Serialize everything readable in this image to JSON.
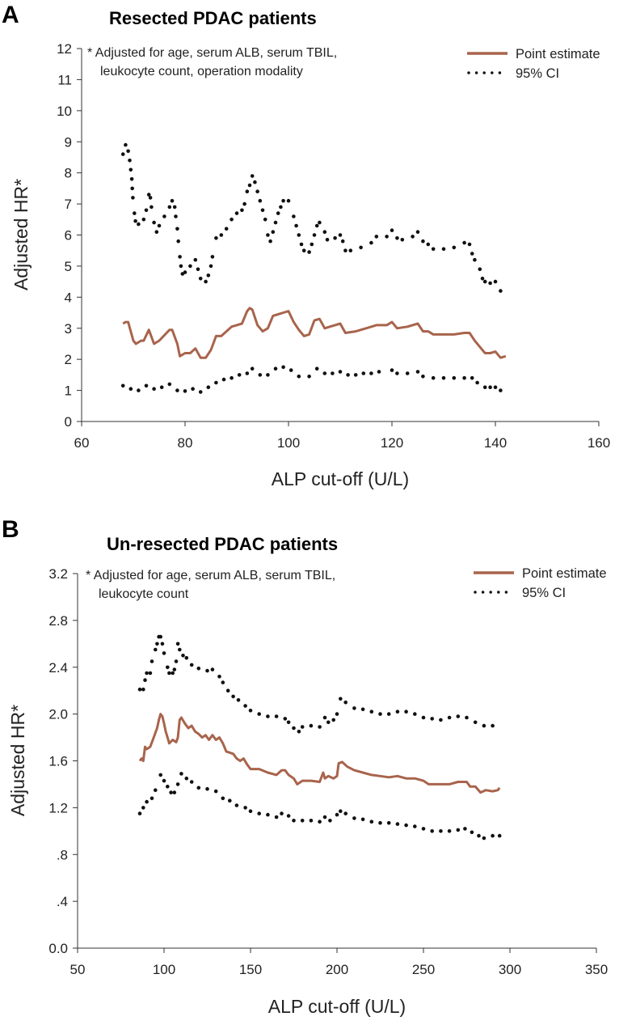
{
  "chart_data": [
    {
      "type": "line",
      "panel_label": "A",
      "title": "Resected PDAC patients",
      "xlabel": "ALP cut-off (U/L)",
      "ylabel": "Adjusted HR*",
      "xlim": [
        60,
        160
      ],
      "ylim": [
        0,
        12
      ],
      "xticks": [
        "60",
        "80",
        "100",
        "120",
        "140",
        "160"
      ],
      "yticks": [
        "0",
        "1",
        "2",
        "3",
        "4",
        "5",
        "6",
        "7",
        "8",
        "9",
        "10",
        "11",
        "12"
      ],
      "note": [
        "* Adjusted for age, serum ALB, serum TBIL,",
        "leukocyte count, operation modality"
      ],
      "legend": {
        "placement": "top-right",
        "point_estimate": "Point estimate",
        "ci": "95% CI"
      },
      "colors": {
        "point_estimate": "#a8644c",
        "ci": "#111111"
      },
      "series": [
        {
          "name": "Point estimate",
          "style": "solid",
          "x": [
            68,
            68.5,
            69,
            70,
            70.5,
            71.5,
            72,
            73,
            74,
            75,
            77,
            77.5,
            78.5,
            79,
            80,
            81,
            82,
            83,
            84,
            85,
            86,
            87,
            88,
            89,
            90,
            91,
            92,
            92.5,
            93,
            94,
            95,
            96,
            97,
            98,
            99,
            100,
            101,
            102,
            103,
            104,
            105,
            106,
            107,
            108,
            109,
            110,
            111,
            113,
            115,
            117,
            119,
            120,
            121,
            123,
            125,
            126,
            127,
            128,
            130,
            132,
            134,
            135,
            136,
            137,
            138,
            139,
            140,
            141,
            142
          ],
          "y": [
            3.15,
            3.2,
            3.2,
            2.6,
            2.5,
            2.6,
            2.6,
            2.95,
            2.5,
            2.6,
            2.95,
            2.95,
            2.5,
            2.1,
            2.2,
            2.2,
            2.35,
            2.05,
            2.05,
            2.3,
            2.75,
            2.75,
            2.9,
            3.05,
            3.1,
            3.15,
            3.55,
            3.65,
            3.6,
            3.1,
            2.9,
            3.0,
            3.4,
            3.45,
            3.5,
            3.55,
            3.2,
            2.95,
            2.75,
            2.8,
            3.25,
            3.3,
            3.0,
            3.05,
            3.1,
            3.15,
            2.85,
            2.9,
            3.0,
            3.1,
            3.1,
            3.2,
            3.0,
            3.05,
            3.15,
            2.9,
            2.9,
            2.8,
            2.8,
            2.8,
            2.85,
            2.85,
            2.6,
            2.4,
            2.2,
            2.2,
            2.25,
            2.05,
            2.1
          ]
        },
        {
          "name": "95% CI upper",
          "style": "dotted",
          "x": [
            68,
            68.5,
            69,
            69.3,
            69.5,
            69.7,
            69.8,
            69.9,
            70.2,
            70.4,
            71,
            72,
            72.5,
            73,
            73.3,
            73.5,
            74,
            74.5,
            75,
            76,
            77,
            77.5,
            78,
            78.2,
            78.5,
            78.7,
            79,
            79.2,
            79.5,
            80,
            81,
            82,
            82.5,
            83,
            84,
            84.5,
            85,
            85.3,
            86,
            87,
            88,
            89,
            90,
            91,
            91.5,
            92,
            92.5,
            93,
            93.5,
            94,
            94.5,
            95,
            95.5,
            96,
            96.5,
            97,
            97.5,
            98,
            98.5,
            99,
            100,
            101,
            101.5,
            102,
            102.5,
            103,
            104,
            104.5,
            105,
            105.5,
            106,
            107,
            107.5,
            109,
            110,
            110.5,
            111,
            112,
            114,
            116,
            117,
            119,
            120,
            121,
            122,
            124,
            125,
            126,
            127,
            128,
            130,
            132,
            134,
            135,
            135.5,
            136,
            137,
            137.5,
            138,
            139,
            140,
            141
          ],
          "y": [
            8.6,
            8.9,
            8.7,
            8.4,
            8.1,
            7.8,
            7.5,
            7.2,
            6.7,
            6.45,
            6.35,
            6.5,
            6.8,
            7.3,
            7.2,
            6.9,
            6.4,
            6.1,
            6.3,
            6.6,
            6.9,
            7.1,
            6.9,
            6.6,
            6.2,
            5.8,
            5.3,
            5.0,
            4.75,
            4.8,
            5.0,
            5.2,
            4.9,
            4.6,
            4.5,
            4.7,
            5.0,
            5.3,
            5.9,
            6.0,
            6.2,
            6.5,
            6.7,
            6.8,
            7.0,
            7.4,
            7.6,
            7.9,
            7.7,
            7.4,
            7.1,
            6.8,
            6.5,
            6.0,
            5.8,
            6.1,
            6.4,
            6.7,
            6.9,
            7.1,
            7.1,
            6.6,
            6.3,
            6.0,
            5.7,
            5.5,
            5.45,
            5.7,
            6.0,
            6.3,
            6.4,
            6.1,
            5.85,
            5.9,
            6.0,
            5.8,
            5.5,
            5.5,
            5.6,
            5.75,
            5.95,
            5.95,
            6.15,
            5.9,
            5.85,
            5.95,
            6.1,
            5.8,
            5.7,
            5.55,
            5.55,
            5.6,
            5.75,
            5.7,
            5.4,
            5.2,
            4.9,
            4.6,
            4.5,
            4.45,
            4.5,
            4.2
          ]
        },
        {
          "name": "95% CI lower",
          "style": "dotted",
          "x": [
            68,
            69.5,
            71,
            72.5,
            74,
            75.5,
            77,
            78.5,
            80,
            81.5,
            83,
            84.5,
            86,
            87.5,
            89,
            90.5,
            92,
            93,
            94.5,
            96,
            97.5,
            99,
            100.5,
            102,
            104,
            105.5,
            107,
            108.5,
            110,
            111.5,
            113,
            114.5,
            116,
            117.5,
            120,
            121,
            123,
            125,
            126,
            128,
            130,
            132,
            134,
            135.5,
            136.5,
            138,
            139,
            140,
            141
          ],
          "y": [
            1.15,
            1.05,
            1.0,
            1.15,
            1.05,
            1.1,
            1.2,
            1.0,
            0.98,
            1.05,
            0.95,
            1.1,
            1.25,
            1.35,
            1.4,
            1.5,
            1.55,
            1.7,
            1.5,
            1.5,
            1.7,
            1.75,
            1.65,
            1.45,
            1.45,
            1.7,
            1.55,
            1.55,
            1.6,
            1.5,
            1.5,
            1.55,
            1.55,
            1.6,
            1.65,
            1.55,
            1.55,
            1.6,
            1.45,
            1.4,
            1.4,
            1.4,
            1.4,
            1.4,
            1.25,
            1.1,
            1.1,
            1.1,
            1.0
          ]
        }
      ]
    },
    {
      "type": "line",
      "panel_label": "B",
      "title": "Un-resected PDAC patients",
      "xlabel": "ALP cut-off (U/L)",
      "ylabel": "Adjusted HR*",
      "xlim": [
        50,
        350
      ],
      "ylim": [
        0,
        3.2
      ],
      "xticks": [
        "50",
        "100",
        "150",
        "200",
        "250",
        "300",
        "350"
      ],
      "yticks": [
        "0.0",
        ".4",
        ".8",
        "1.2",
        "1.6",
        "2.0",
        "2.4",
        "2.8",
        "3.2"
      ],
      "note": [
        "* Adjusted for age, serum ALB, serum TBIL,",
        "leukocyte count"
      ],
      "legend": {
        "placement": "top-right",
        "point_estimate": "Point estimate",
        "ci": "95% CI"
      },
      "colors": {
        "point_estimate": "#a8644c",
        "ci": "#111111"
      },
      "series": [
        {
          "name": "Point estimate",
          "style": "solid",
          "x": [
            86,
            87,
            88,
            89,
            90,
            92,
            94,
            96,
            97,
            98,
            99,
            100,
            101,
            102,
            103,
            105,
            107,
            108,
            109,
            110,
            112,
            114,
            116,
            118,
            120,
            122,
            124,
            126,
            128,
            130,
            132,
            134,
            136,
            140,
            142,
            144,
            146,
            148,
            150,
            155,
            160,
            165,
            168,
            170,
            172,
            175,
            177,
            180,
            185,
            190,
            192,
            193,
            195,
            198,
            200,
            201,
            203,
            206,
            210,
            215,
            220,
            225,
            230,
            235,
            240,
            245,
            250,
            253,
            258,
            265,
            270,
            275,
            277,
            280,
            283,
            286,
            290,
            293,
            294
          ],
          "y": [
            1.6,
            1.62,
            1.6,
            1.72,
            1.7,
            1.72,
            1.8,
            1.88,
            1.95,
            2.0,
            1.98,
            1.92,
            1.85,
            1.8,
            1.75,
            1.78,
            1.76,
            1.8,
            1.95,
            1.97,
            1.92,
            1.88,
            1.9,
            1.85,
            1.83,
            1.8,
            1.82,
            1.78,
            1.82,
            1.78,
            1.8,
            1.75,
            1.68,
            1.66,
            1.62,
            1.6,
            1.62,
            1.57,
            1.53,
            1.53,
            1.5,
            1.48,
            1.52,
            1.52,
            1.48,
            1.45,
            1.4,
            1.43,
            1.43,
            1.42,
            1.5,
            1.45,
            1.47,
            1.45,
            1.47,
            1.58,
            1.59,
            1.55,
            1.52,
            1.5,
            1.48,
            1.47,
            1.46,
            1.47,
            1.45,
            1.45,
            1.43,
            1.4,
            1.4,
            1.4,
            1.42,
            1.42,
            1.38,
            1.38,
            1.33,
            1.35,
            1.34,
            1.35,
            1.37
          ]
        },
        {
          "name": "95% CI upper",
          "style": "dotted",
          "x": [
            86,
            88,
            89,
            90,
            92,
            93,
            95,
            96,
            97,
            98,
            99,
            100,
            102,
            103,
            105,
            106,
            107,
            108,
            109,
            111,
            113,
            116,
            120,
            125,
            128,
            132,
            134,
            137,
            140,
            143,
            147,
            150,
            155,
            160,
            165,
            170,
            172,
            175,
            178,
            180,
            185,
            190,
            193,
            195,
            198,
            200,
            202,
            205,
            210,
            215,
            220,
            225,
            230,
            235,
            240,
            245,
            250,
            255,
            260,
            265,
            270,
            275,
            280,
            285,
            290
          ],
          "y": [
            2.21,
            2.21,
            2.29,
            2.35,
            2.35,
            2.45,
            2.55,
            2.6,
            2.66,
            2.66,
            2.6,
            2.52,
            2.4,
            2.35,
            2.35,
            2.38,
            2.45,
            2.6,
            2.55,
            2.5,
            2.48,
            2.42,
            2.39,
            2.37,
            2.38,
            2.32,
            2.27,
            2.2,
            2.15,
            2.12,
            2.07,
            2.03,
            2.0,
            1.98,
            1.98,
            1.96,
            1.93,
            1.88,
            1.85,
            1.89,
            1.9,
            1.89,
            1.97,
            1.93,
            1.95,
            2.0,
            2.13,
            2.1,
            2.05,
            2.04,
            2.02,
            2.0,
            2.0,
            2.02,
            2.02,
            2.0,
            1.97,
            1.96,
            1.95,
            1.97,
            1.98,
            1.97,
            1.93,
            1.9,
            1.9
          ]
        },
        {
          "name": "95% CI lower",
          "style": "dotted",
          "x": [
            86,
            88,
            90,
            93,
            95,
            98,
            100,
            102,
            104,
            106,
            108,
            110,
            113,
            116,
            120,
            125,
            130,
            134,
            138,
            142,
            147,
            150,
            155,
            160,
            165,
            168,
            172,
            175,
            180,
            185,
            190,
            193,
            196,
            200,
            202,
            205,
            210,
            215,
            220,
            225,
            230,
            235,
            240,
            245,
            250,
            255,
            260,
            265,
            270,
            274,
            278,
            282,
            285,
            290,
            294
          ],
          "y": [
            1.15,
            1.2,
            1.25,
            1.28,
            1.35,
            1.48,
            1.43,
            1.38,
            1.33,
            1.33,
            1.4,
            1.49,
            1.45,
            1.42,
            1.37,
            1.36,
            1.34,
            1.28,
            1.26,
            1.22,
            1.2,
            1.17,
            1.15,
            1.14,
            1.12,
            1.15,
            1.13,
            1.09,
            1.09,
            1.09,
            1.08,
            1.12,
            1.09,
            1.14,
            1.17,
            1.15,
            1.11,
            1.1,
            1.08,
            1.07,
            1.07,
            1.06,
            1.05,
            1.04,
            1.02,
            1.0,
            1.0,
            1.0,
            1.01,
            1.02,
            0.99,
            0.96,
            0.94,
            0.96,
            0.96
          ]
        }
      ]
    }
  ]
}
